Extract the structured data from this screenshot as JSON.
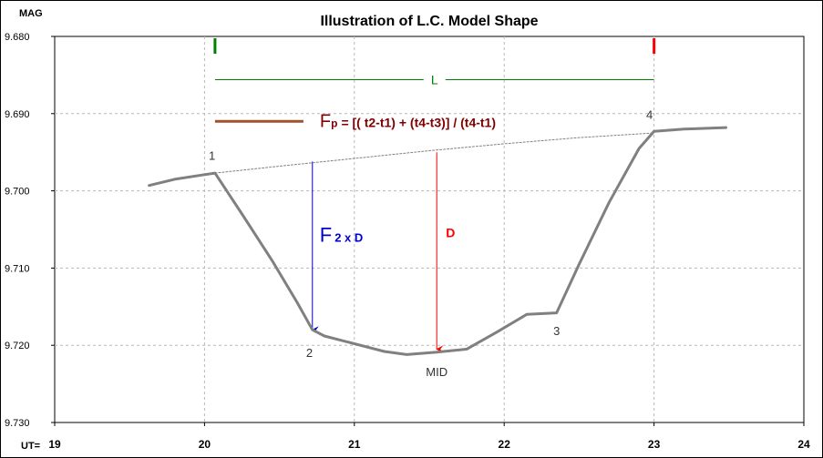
{
  "chart_data": {
    "type": "line",
    "title": "Illustration of L.C. Model Shape",
    "ylabel": "MAG",
    "xlabel": "UT=",
    "xlim": [
      19,
      24
    ],
    "ylim": [
      9.73,
      9.68
    ],
    "y_inverted": true,
    "grid": true,
    "x_ticks": [
      "19",
      "20",
      "21",
      "22",
      "23",
      "24"
    ],
    "y_ticks": [
      "9.680",
      "9.690",
      "9.700",
      "9.710",
      "9.720",
      "9.730"
    ],
    "series": [
      {
        "name": "",
        "color": "#808080",
        "x": [
          19.63,
          19.8,
          20.0,
          20.07,
          20.25,
          20.45,
          20.62,
          20.72,
          20.8,
          21.0,
          21.2,
          21.35,
          21.55,
          21.75,
          21.95,
          22.15,
          22.35,
          22.5,
          22.7,
          22.9,
          23.0,
          23.2,
          23.48
        ],
        "y": [
          9.6993,
          9.6985,
          9.6979,
          9.6977,
          9.703,
          9.709,
          9.7145,
          9.718,
          9.7188,
          9.7198,
          9.7208,
          9.7212,
          9.7209,
          9.7205,
          9.7183,
          9.716,
          9.7158,
          9.7095,
          9.7015,
          9.6945,
          9.6923,
          9.692,
          9.6918
        ]
      },
      {
        "name": "",
        "style": "dotted",
        "color": "#808080",
        "x": [
          20.07,
          20.5,
          21.0,
          21.5,
          22.0,
          22.5,
          23.0
        ],
        "y": [
          9.6977,
          9.6968,
          9.6958,
          9.6948,
          9.6939,
          9.6931,
          9.6925
        ]
      }
    ],
    "point_labels": [
      {
        "text": "1",
        "x": 20.05,
        "y": 9.696
      },
      {
        "text": "2",
        "x": 20.7,
        "y": 9.7215
      },
      {
        "text": "3",
        "x": 22.35,
        "y": 9.7187
      },
      {
        "text": "4",
        "x": 22.97,
        "y": 9.6907
      },
      {
        "text": "MID",
        "x": 21.55,
        "y": 9.724
      }
    ],
    "annotations": {
      "contact_marks": [
        {
          "x": 20.07,
          "color": "#008000"
        },
        {
          "x": 23.0,
          "color": "#ff0000"
        }
      ],
      "L": {
        "text": "L",
        "x1": 20.07,
        "x2": 23.0,
        "y": 9.6856,
        "color": "#008000"
      },
      "Fp": {
        "symbol": "F",
        "sub": "p",
        "text": "= [( t2-t1) + (t4-t3)] / (t4-t1)",
        "line_x1": 20.07,
        "line_x2": 20.66,
        "y": 9.691,
        "color": "#800000"
      },
      "F2xD": {
        "symbol": "F",
        "sub": "2 x D",
        "x": 20.72,
        "y1": 9.6962,
        "y2": 9.718,
        "color": "#0000cc"
      },
      "D": {
        "text": "D",
        "x": 21.55,
        "y1": 9.695,
        "y2": 9.7205,
        "color": "#ff0000"
      }
    }
  }
}
